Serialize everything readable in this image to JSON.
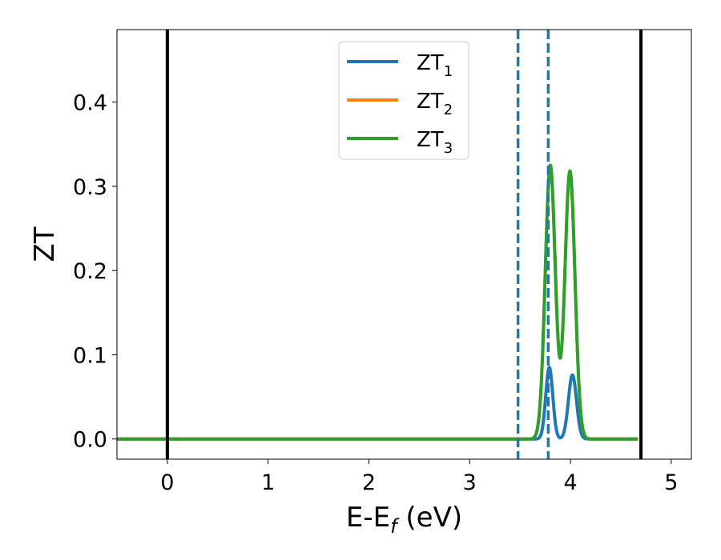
{
  "chart_data": {
    "type": "line",
    "title": "",
    "xlabel_main": "E-E",
    "xlabel_sub": "f",
    "xlabel_unit": " (eV)",
    "ylabel": "ZT",
    "xlim": [
      -0.5,
      5.2
    ],
    "ylim": [
      -0.024,
      0.486
    ],
    "xticks": [
      0,
      1,
      2,
      3,
      4,
      5
    ],
    "yticks": [
      0.0,
      0.1,
      0.2,
      0.3,
      0.4
    ],
    "grid": false,
    "legend_position": "top-center",
    "vlines": [
      {
        "x": 0.0,
        "style": "solid",
        "color": "#000000"
      },
      {
        "x": 4.7,
        "style": "solid",
        "color": "#000000"
      },
      {
        "x": 3.48,
        "style": "dashed",
        "color": "#1f77b4"
      },
      {
        "x": 3.78,
        "style": "dashed",
        "color": "#1f77b4"
      }
    ],
    "series": [
      {
        "name_main": "ZT",
        "name_sub": "1",
        "color": "#1f77b4",
        "x_range": [
          -0.5,
          4.67
        ],
        "baseline": 0.0,
        "peaks": [
          {
            "center": 3.79,
            "height": 0.085,
            "sigma": 0.035
          },
          {
            "center": 4.02,
            "height": 0.076,
            "sigma": 0.04
          }
        ]
      },
      {
        "name_main": "ZT",
        "name_sub": "2",
        "color": "#ff7f0e",
        "x_range": [
          -0.5,
          4.67
        ],
        "baseline": 0.0,
        "peaks": [
          {
            "center": 3.8,
            "height": 0.325,
            "sigma": 0.05
          },
          {
            "center": 3.995,
            "height": 0.318,
            "sigma": 0.05
          }
        ]
      },
      {
        "name_main": "ZT",
        "name_sub": "3",
        "color": "#2ca02c",
        "x_range": [
          -0.5,
          4.67
        ],
        "baseline": 0.0,
        "peaks": [
          {
            "center": 3.8,
            "height": 0.325,
            "sigma": 0.05
          },
          {
            "center": 3.995,
            "height": 0.318,
            "sigma": 0.05
          }
        ]
      }
    ]
  }
}
